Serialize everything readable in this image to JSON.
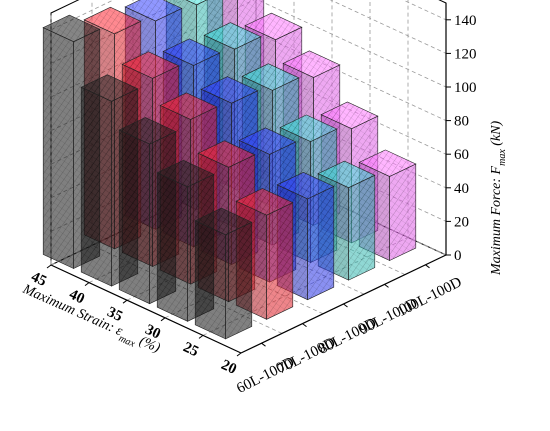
{
  "chart_data": {
    "type": "bar3d",
    "title": "",
    "zlabel": {
      "main": "Maximum Force: F",
      "sub": "max",
      "unit": "(kN)"
    },
    "xlabel": {
      "main": "Maximum Strain: ε",
      "sub": "max",
      "unit": "(%)"
    },
    "ylabel": "",
    "z_ticks": [
      "0",
      "20",
      "40",
      "60",
      "80",
      "100",
      "120",
      "140"
    ],
    "zlim": [
      0,
      150
    ],
    "x_ticks": [
      "20",
      "25",
      "30",
      "35",
      "40",
      "45"
    ],
    "xlim": [
      20,
      45
    ],
    "categories": [
      "60L-100D",
      "70L-100D",
      "80L-100D",
      "90L-100D",
      "100L-100D"
    ],
    "grid": true,
    "series": [
      {
        "color": "#1a1a1a",
        "strain": [
          45,
          40,
          35,
          30,
          25
        ],
        "values": [
          135,
          110,
          95,
          80,
          62
        ]
      },
      {
        "color": "#e0202a",
        "strain": [
          45,
          40,
          35,
          30,
          25
        ],
        "values": [
          128,
          112,
          98,
          80,
          62
        ]
      },
      {
        "color": "#2a35e8",
        "strain": [
          45,
          40,
          35,
          30,
          25
        ],
        "values": [
          124,
          108,
          96,
          76,
          60
        ]
      },
      {
        "color": "#34b8b0",
        "strain": [
          45,
          40,
          35,
          30,
          25
        ],
        "values": [
          122,
          106,
          92,
          72,
          55
        ]
      },
      {
        "color": "#e060e8",
        "strain": [
          45,
          40,
          35,
          30,
          25
        ],
        "values": [
          118,
          100,
          88,
          68,
          50
        ]
      }
    ]
  }
}
